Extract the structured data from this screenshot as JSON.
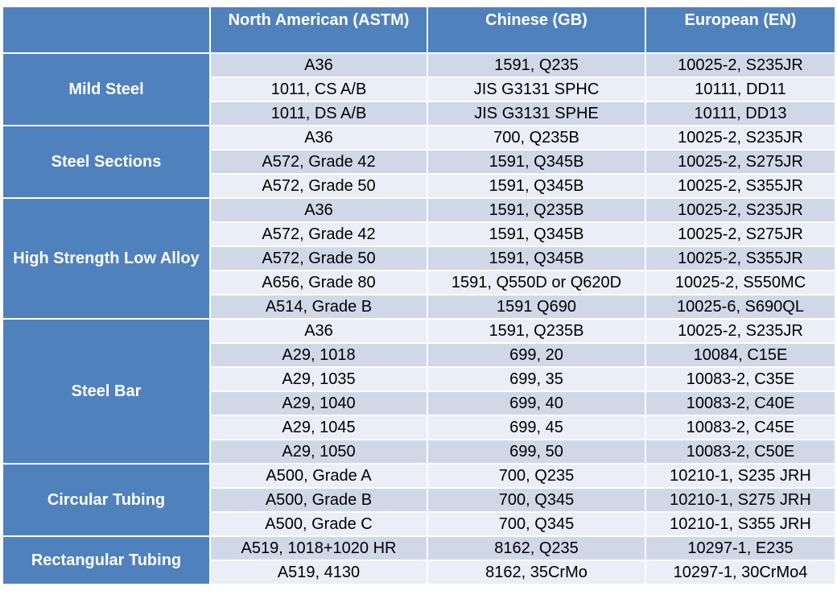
{
  "headers": [
    "",
    "North American (ASTM)",
    "Chinese (GB)",
    "European (EN)"
  ],
  "groups": [
    {
      "category": "Mild Steel",
      "rows": [
        [
          "A36",
          "1591, Q235",
          "10025-2, S235JR"
        ],
        [
          "1011, CS A/B",
          "JIS G3131 SPHC",
          "10111, DD11"
        ],
        [
          "1011, DS A/B",
          "JIS G3131 SPHE",
          "10111, DD13"
        ]
      ]
    },
    {
      "category": "Steel Sections",
      "rows": [
        [
          "A36",
          "700, Q235B",
          "10025-2, S235JR"
        ],
        [
          "A572, Grade 42",
          "1591, Q345B",
          "10025-2, S275JR"
        ],
        [
          "A572, Grade 50",
          "1591, Q345B",
          "10025-2, S355JR"
        ]
      ]
    },
    {
      "category": "High Strength Low Alloy",
      "rows": [
        [
          "A36",
          "1591, Q235B",
          "10025-2, S235JR"
        ],
        [
          "A572, Grade 42",
          "1591, Q345B",
          "10025-2, S275JR"
        ],
        [
          "A572, Grade 50",
          "1591, Q345B",
          "10025-2, S355JR"
        ],
        [
          "A656, Grade 80",
          "1591, Q550D or Q620D",
          "10025-2, S550MC"
        ],
        [
          "A514, Grade B",
          "1591 Q690",
          "10025-6, S690QL"
        ]
      ]
    },
    {
      "category": "Steel Bar",
      "rows": [
        [
          "A36",
          "1591, Q235B",
          "10025-2, S235JR"
        ],
        [
          "A29, 1018",
          "699, 20",
          "10084, C15E"
        ],
        [
          "A29, 1035",
          "699, 35",
          "10083-2, C35E"
        ],
        [
          "A29, 1040",
          "699, 40",
          "10083-2, C40E"
        ],
        [
          "A29, 1045",
          "699, 45",
          "10083-2, C45E"
        ],
        [
          "A29, 1050",
          "699, 50",
          "10083-2, C50E"
        ]
      ]
    },
    {
      "category": "Circular Tubing",
      "rows": [
        [
          "A500, Grade A",
          "700, Q235",
          "10210-1, S235 JRH"
        ],
        [
          "A500, Grade B",
          "700, Q345",
          "10210-1, S275 JRH"
        ],
        [
          "A500, Grade C",
          "700, Q345",
          "10210-1, S355 JRH"
        ]
      ]
    },
    {
      "category": "Rectangular Tubing",
      "rows": [
        [
          "A519, 1018+1020 HR",
          "8162, Q235",
          "10297-1, E235"
        ],
        [
          "A519, 4130",
          "8162, 35CrMo",
          "10297-1, 30CrMo4"
        ]
      ]
    }
  ],
  "colors": {
    "header_bg": "#4f81bd",
    "row_light": "#e9eef7",
    "row_dark": "#d0d8e8"
  }
}
